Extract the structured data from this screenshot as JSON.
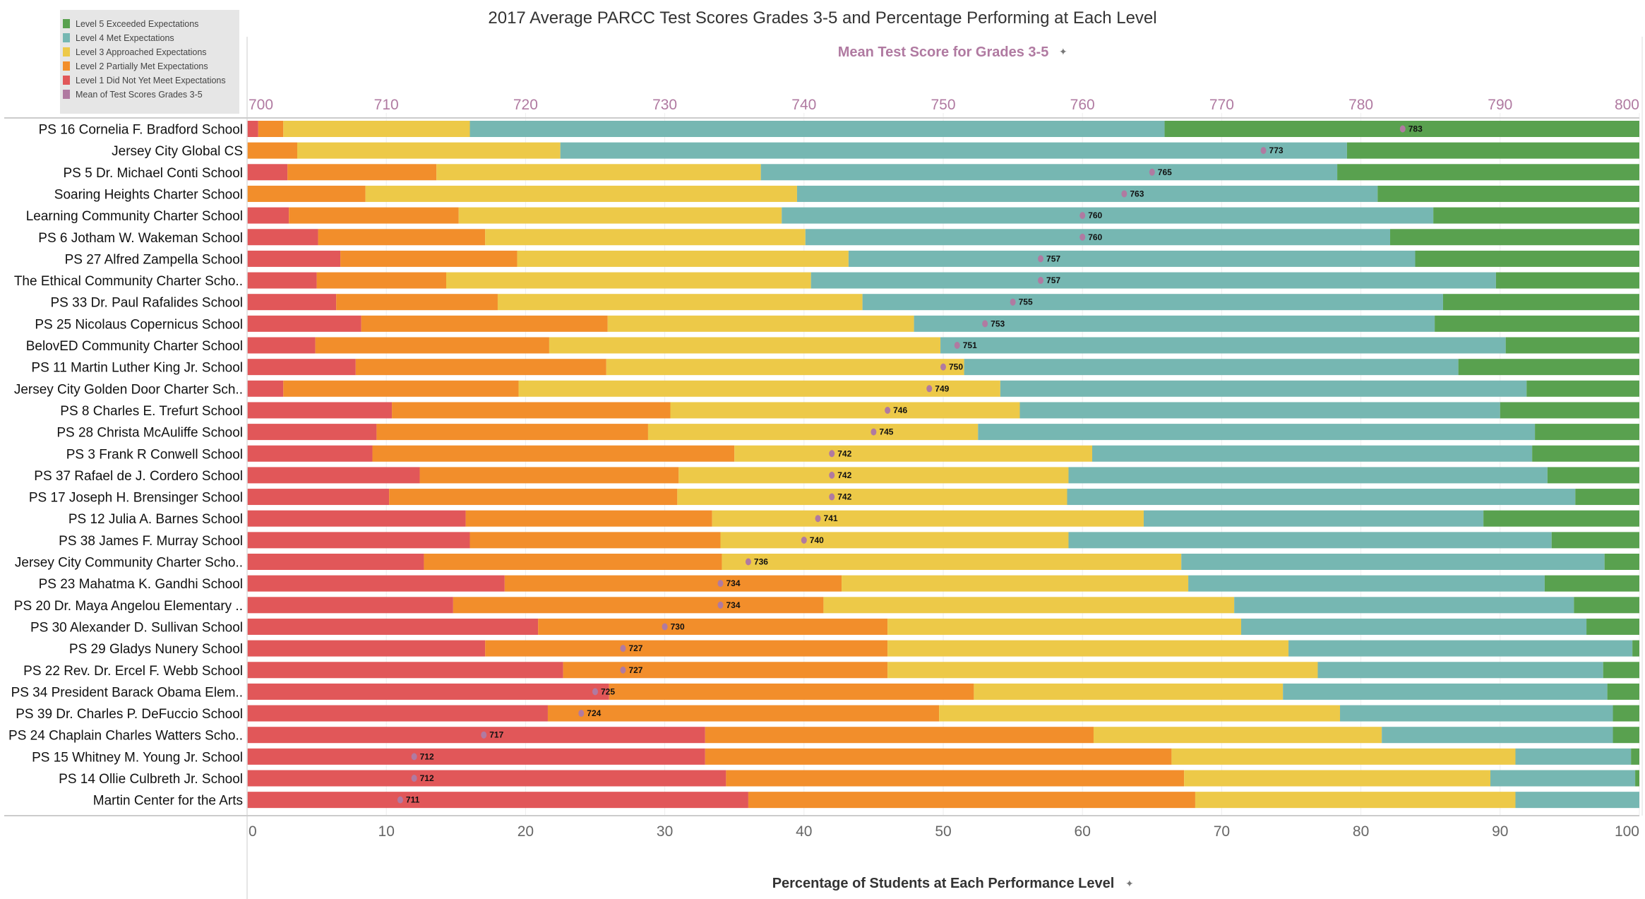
{
  "chart_data": {
    "type": "bar",
    "orientation": "horizontal",
    "stacked": true,
    "title": "2017 Average PARCC Test Scores Grades 3-5 and Percentage Performing at Each Level",
    "xlabel": "Percentage of Students at Each Performance Level",
    "x2label": "Mean Test Score for Grades 3-5",
    "xlim": [
      0,
      100
    ],
    "x2lim": [
      700,
      800
    ],
    "xticks": [
      "0",
      "10",
      "20",
      "30",
      "40",
      "50",
      "60",
      "70",
      "80",
      "90",
      "100"
    ],
    "x2ticks": [
      "700",
      "710",
      "720",
      "730",
      "740",
      "750",
      "760",
      "770",
      "780",
      "790",
      "800"
    ],
    "grid": true,
    "legend_position": "top-left",
    "legend": [
      {
        "label": "Level 5 Exceeded Expectations",
        "color": "#59a14f"
      },
      {
        "label": "Level 4 Met Expectations",
        "color": "#76b7b2"
      },
      {
        "label": "Level 3 Approached Expectations",
        "color": "#edc948"
      },
      {
        "label": "Level 2 Partially Met Expectations",
        "color": "#f28e2b"
      },
      {
        "label": "Level 1 Did Not Yet Meet Expectations",
        "color": "#e15759"
      },
      {
        "label": "Mean of Test Scores Grades 3-5",
        "color": "#b07aa1"
      }
    ],
    "categories": [
      "PS 16 Cornelia F. Bradford School",
      "Jersey City Global CS",
      "PS 5 Dr. Michael Conti School",
      "Soaring Heights Charter School",
      "Learning Community Charter School",
      "PS 6 Jotham W. Wakeman School",
      "PS 27 Alfred Zampella School",
      "The Ethical Community Charter Scho..",
      "PS 33 Dr. Paul Rafalides School",
      "PS 25 Nicolaus Copernicus School",
      "BelovED Community Charter School",
      "PS 11 Martin Luther King Jr. School",
      "Jersey City Golden Door Charter Sch..",
      "PS 8 Charles E. Trefurt School",
      "PS 28 Christa McAuliffe School",
      "PS 3 Frank R Conwell School",
      "PS 37 Rafael de J. Cordero School",
      "PS 17 Joseph H. Brensinger School",
      "PS 12 Julia A. Barnes School",
      "PS 38 James F. Murray School",
      "Jersey City Community Charter Scho..",
      "PS 23 Mahatma K. Gandhi School",
      "PS 20 Dr. Maya Angelou Elementary ..",
      "PS 30 Alexander D. Sullivan School",
      "PS 29 Gladys Nunery School",
      "PS 22 Rev. Dr. Ercel F. Webb School",
      "PS 34 President Barack Obama Elem..",
      "PS 39 Dr. Charles P. DeFuccio School",
      "PS 24 Chaplain Charles Watters Scho..",
      "PS 15 Whitney M. Young Jr. School",
      "PS 14 Ollie Culbreth Jr. School",
      "Martin Center for the Arts"
    ],
    "series": [
      {
        "name": "Level 1 Did Not Yet Meet Expectations",
        "color": "#e15759",
        "values": [
          0.8,
          0,
          2.9,
          0,
          3.0,
          5.1,
          6.7,
          5.0,
          6.4,
          8.2,
          4.9,
          7.8,
          2.6,
          10.4,
          9.3,
          9.0,
          12.4,
          10.2,
          15.7,
          16.0,
          12.7,
          18.5,
          14.8,
          20.9,
          17.1,
          22.7,
          26.0,
          21.6,
          32.9,
          32.9,
          34.4,
          36.0
        ]
      },
      {
        "name": "Level 2 Partially Met Expectations",
        "color": "#f28e2b",
        "values": [
          1.8,
          3.6,
          10.7,
          8.5,
          12.2,
          12.0,
          12.7,
          9.3,
          11.6,
          17.7,
          16.8,
          18.0,
          16.9,
          20.0,
          19.5,
          26.0,
          18.6,
          20.7,
          17.7,
          18.0,
          21.4,
          24.2,
          26.6,
          25.1,
          28.9,
          23.3,
          26.2,
          28.1,
          27.9,
          33.5,
          32.9,
          32.1
        ]
      },
      {
        "name": "Level 3 Approached Expectations",
        "color": "#edc948",
        "values": [
          13.4,
          18.9,
          23.3,
          31.0,
          23.2,
          23.0,
          23.8,
          26.2,
          26.2,
          22.0,
          28.1,
          25.7,
          34.6,
          25.1,
          23.7,
          25.7,
          28.0,
          28.0,
          31.0,
          25.0,
          33.0,
          24.9,
          29.5,
          25.4,
          28.8,
          30.9,
          22.2,
          28.8,
          20.7,
          24.7,
          22.0,
          23.0
        ]
      },
      {
        "name": "Level 4 Met Expectations",
        "color": "#76b7b2",
        "values": [
          49.9,
          56.5,
          41.4,
          41.7,
          46.8,
          42.0,
          40.7,
          49.2,
          41.7,
          37.4,
          40.6,
          35.5,
          37.8,
          34.5,
          40.0,
          31.6,
          34.4,
          36.5,
          24.4,
          34.7,
          30.4,
          25.6,
          24.4,
          24.8,
          24.7,
          20.5,
          23.3,
          19.6,
          16.6,
          8.3,
          10.4,
          8.9
        ]
      },
      {
        "name": "Level 5 Exceeded Expectations",
        "color": "#59a14f",
        "values": [
          34.1,
          21.0,
          21.7,
          18.8,
          14.8,
          17.9,
          16.1,
          10.3,
          14.1,
          14.7,
          9.6,
          13.0,
          8.1,
          10.0,
          7.5,
          7.7,
          6.6,
          4.6,
          11.2,
          6.3,
          2.5,
          6.8,
          4.7,
          3.8,
          0.5,
          2.6,
          2.3,
          1.9,
          1.9,
          0.6,
          0.3,
          0
        ]
      },
      {
        "name": "Mean of Test Scores Grades 3-5",
        "color": "#b07aa1",
        "axis": "top",
        "values": [
          783,
          773,
          765,
          763,
          760,
          760,
          757,
          757,
          755,
          753,
          751,
          750,
          749,
          746,
          745,
          742,
          742,
          742,
          741,
          740,
          736,
          734,
          734,
          730,
          727,
          727,
          725,
          724,
          717,
          712,
          712,
          711
        ]
      }
    ]
  },
  "icons": {
    "axis_title_pin": "pin-icon"
  }
}
